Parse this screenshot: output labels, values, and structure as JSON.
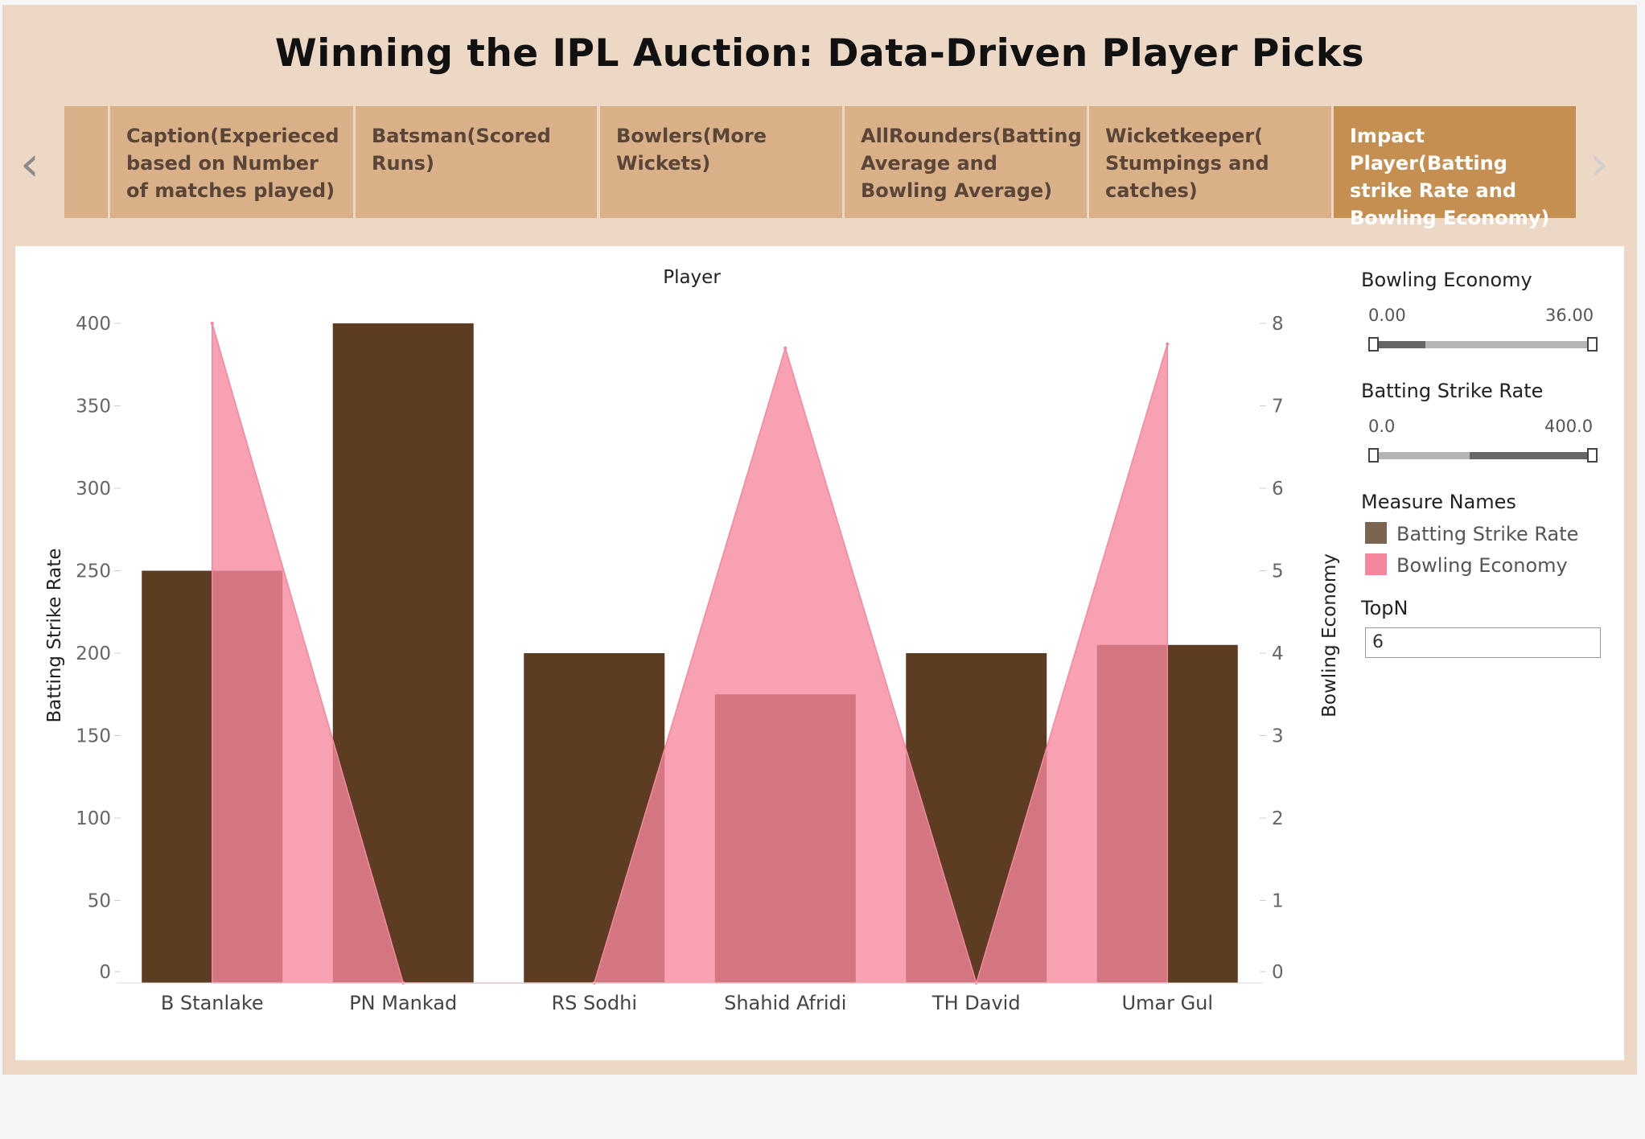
{
  "dashboard": {
    "title": "Winning the IPL Auction: Data-Driven Player Picks",
    "nav": {
      "prev_icon": "chevron-left-icon",
      "next_icon": "chevron-right-icon",
      "prev_glyph": "‹",
      "next_glyph": "›"
    },
    "tabs": [
      {
        "label": "",
        "active": false
      },
      {
        "label": "Caption(Experieced based on Number of matches played)",
        "active": false
      },
      {
        "label": "Batsman(Scored Runs)",
        "active": false
      },
      {
        "label": "Bowlers(More Wickets)",
        "active": false
      },
      {
        "label": "AllRounders(Batting Average and Bowling Average)",
        "active": false
      },
      {
        "label": "Wicketkeeper( Stumpings and catches)",
        "active": false
      },
      {
        "label": "Impact Player(Batting strike Rate and Bowling Economy)",
        "active": true
      }
    ]
  },
  "controls": {
    "bowling_economy": {
      "title": "Bowling Economy",
      "min_label": "0.00",
      "max_label": "36.00"
    },
    "batting_strike_rate": {
      "title": "Batting Strike Rate",
      "min_label": "0.0",
      "max_label": "400.0"
    },
    "measure_names": {
      "title": "Measure Names",
      "items": [
        {
          "label": "Batting Strike Rate",
          "color": "#7b6450"
        },
        {
          "label": "Bowling Economy",
          "color": "#f5869c"
        }
      ]
    },
    "topn": {
      "title": "TopN",
      "value": "6"
    }
  },
  "chart_data": {
    "type": "bar",
    "title": "Player",
    "categories": [
      "B Stanlake",
      "PN Mankad",
      "RS Sodhi",
      "Shahid Afridi",
      "TH David",
      "Umar Gul"
    ],
    "series": [
      {
        "name": "Batting Strike Rate",
        "type": "bar",
        "axis": "left",
        "color": "#5c3d22",
        "values": [
          250,
          400,
          200,
          175,
          200,
          205
        ]
      },
      {
        "name": "Bowling Economy",
        "type": "area",
        "axis": "right",
        "color": "#f5869c",
        "values": [
          8.0,
          0.0,
          0.0,
          7.7,
          0.0,
          7.75
        ]
      }
    ],
    "ylabel": "Batting Strike Rate",
    "ylim": [
      0,
      400
    ],
    "yticks": [
      0,
      50,
      100,
      150,
      200,
      250,
      300,
      350,
      400
    ],
    "y2label": "Bowling Economy",
    "y2lim": [
      0,
      8
    ],
    "y2ticks": [
      0,
      1,
      2,
      3,
      4,
      5,
      6,
      7,
      8
    ],
    "grid": false
  }
}
